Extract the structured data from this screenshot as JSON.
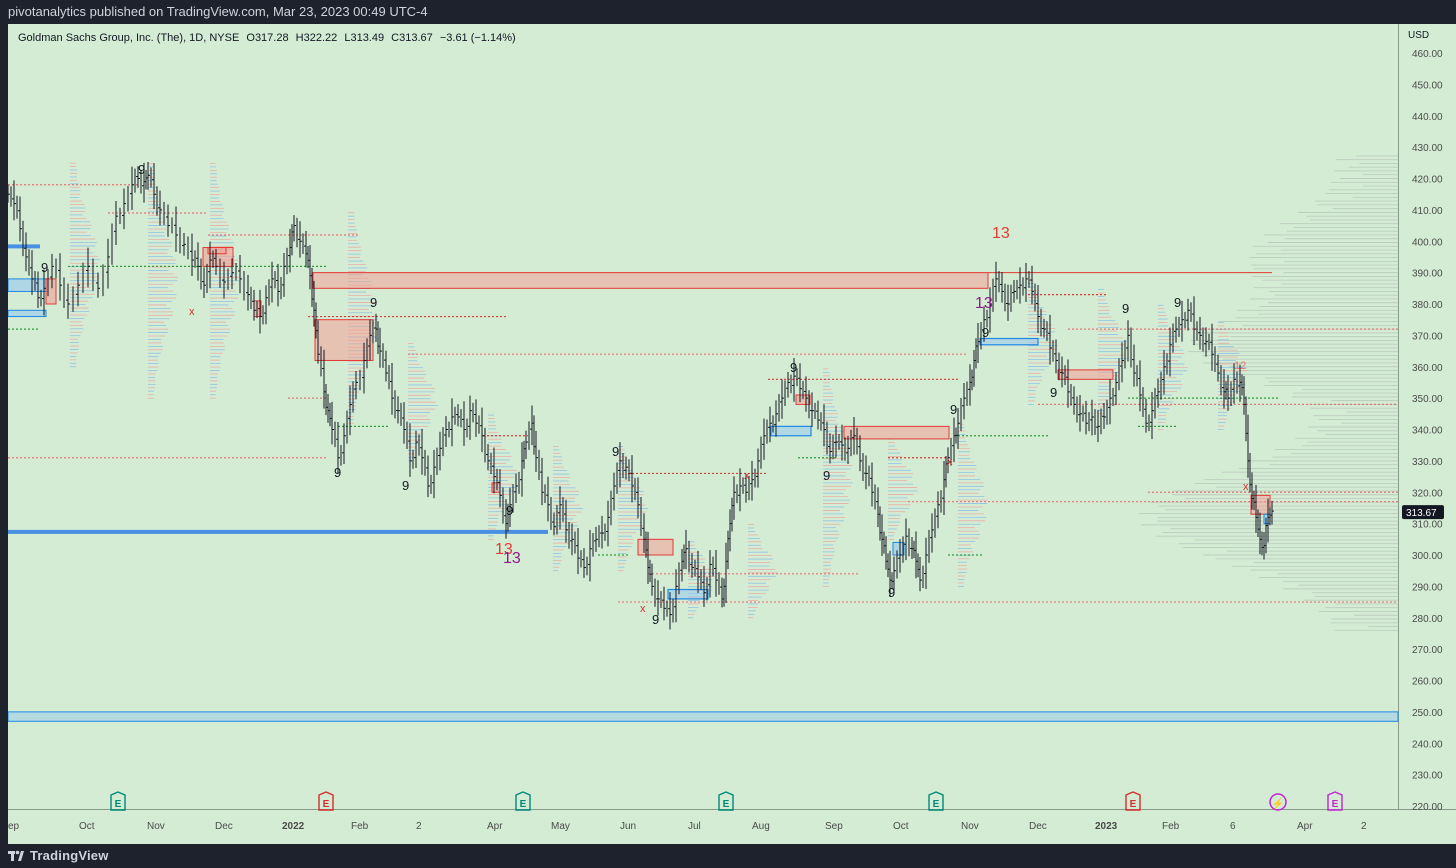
{
  "header": {
    "published_text": "pivotanalytics published on TradingView.com, Mar 23, 2023 00:49 UTC-4"
  },
  "legend": {
    "symbol": "Goldman Sachs Group, Inc. (The), 1D, NYSE",
    "open_label": "O",
    "open": "317.28",
    "high_label": "H",
    "high": "322.22",
    "low_label": "L",
    "low": "313.49",
    "close_label": "C",
    "close": "313.67",
    "change": "−3.61 (−1.14%)"
  },
  "price_axis": {
    "currency": "USD",
    "ticks": [
      "460.00",
      "450.00",
      "440.00",
      "430.00",
      "420.00",
      "410.00",
      "400.00",
      "390.00",
      "380.00",
      "370.00",
      "360.00",
      "350.00",
      "340.00",
      "330.00",
      "320.00",
      "310.00",
      "300.00",
      "290.00",
      "280.00",
      "270.00",
      "260.00",
      "250.00",
      "240.00",
      "230.00",
      "220.00"
    ],
    "last_price_badge": "313.67"
  },
  "time_axis": {
    "ticks": [
      "ep",
      "Oct",
      "Nov",
      "Dec",
      "2022",
      "Feb",
      "2",
      "Apr",
      "May",
      "Jun",
      "Jul",
      "Aug",
      "Sep",
      "Oct",
      "Nov",
      "Dec",
      "2023",
      "Feb",
      "6",
      "Apr",
      "2"
    ]
  },
  "event_markers": [
    {
      "label": "E",
      "kind": "earnings-beat"
    },
    {
      "label": "E",
      "kind": "earnings-miss"
    },
    {
      "label": "E",
      "kind": "earnings-beat"
    },
    {
      "label": "E",
      "kind": "earnings-beat"
    },
    {
      "label": "E",
      "kind": "earnings-beat"
    },
    {
      "label": "E",
      "kind": "earnings-miss"
    },
    {
      "label": "⚡",
      "kind": "split-dividend"
    },
    {
      "label": "E",
      "kind": "earnings-upcoming"
    }
  ],
  "td_labels": [
    {
      "text": "9",
      "color": "#131722"
    },
    {
      "text": "9",
      "color": "#131722"
    },
    {
      "text": "9",
      "color": "#131722"
    },
    {
      "text": "9",
      "color": "#131722"
    },
    {
      "text": "9",
      "color": "#131722"
    },
    {
      "text": "9",
      "color": "#131722"
    },
    {
      "text": "9",
      "color": "#131722"
    },
    {
      "text": "9",
      "color": "#131722"
    },
    {
      "text": "9",
      "color": "#131722"
    },
    {
      "text": "9",
      "color": "#131722"
    },
    {
      "text": "9",
      "color": "#131722"
    },
    {
      "text": "9",
      "color": "#131722"
    },
    {
      "text": "9",
      "color": "#131722"
    },
    {
      "text": "9",
      "color": "#131722"
    },
    {
      "text": "9",
      "color": "#131722"
    },
    {
      "text": "9",
      "color": "#131722"
    },
    {
      "text": "9",
      "color": "#131722"
    },
    {
      "text": "9",
      "color": "#131722"
    },
    {
      "text": "13",
      "color": "#e53935"
    },
    {
      "text": "13",
      "color": "#8e1a8e"
    },
    {
      "text": "13",
      "color": "#8e1a8e"
    },
    {
      "text": "13",
      "color": "#e53935"
    },
    {
      "text": "12",
      "color": "#e57373"
    }
  ],
  "colors": {
    "chart_bg": "#d4ecd4",
    "candle": "#131722",
    "supply_zone": "#e53935",
    "demand_zone": "#1e88e5",
    "poc_line": "#2e9d3a",
    "badge_bg": "#131722",
    "earnings_beat": "#00897b",
    "earnings_miss": "#d32f2f",
    "upcoming": "#c026d3"
  },
  "footer": {
    "brand": "TradingView"
  },
  "chart_data": {
    "type": "candlestick",
    "title": "Goldman Sachs Group, Inc. (The), 1D, NYSE",
    "xlabel": "",
    "ylabel": "USD",
    "ylim": [
      215,
      468
    ],
    "grid": false,
    "x_ticks": [
      "Oct",
      "Nov",
      "Dec",
      "2022",
      "Feb",
      "2",
      "Apr",
      "May",
      "Jun",
      "Jul",
      "Aug",
      "Sep",
      "Oct",
      "Nov",
      "Dec",
      "2023",
      "Feb",
      "6",
      "Apr",
      "2"
    ],
    "price_path": [
      [
        0,
        415
      ],
      [
        6,
        412
      ],
      [
        12,
        404
      ],
      [
        18,
        395
      ],
      [
        24,
        388
      ],
      [
        30,
        382
      ],
      [
        36,
        385
      ],
      [
        44,
        392
      ],
      [
        52,
        386
      ],
      [
        60,
        380
      ],
      [
        70,
        386
      ],
      [
        80,
        392
      ],
      [
        90,
        385
      ],
      [
        100,
        395
      ],
      [
        108,
        408
      ],
      [
        116,
        412
      ],
      [
        124,
        418
      ],
      [
        130,
        420
      ],
      [
        136,
        419
      ],
      [
        140,
        421
      ],
      [
        146,
        415
      ],
      [
        152,
        410
      ],
      [
        160,
        405
      ],
      [
        168,
        402
      ],
      [
        176,
        399
      ],
      [
        184,
        394
      ],
      [
        190,
        392
      ],
      [
        196,
        386
      ],
      [
        202,
        394
      ],
      [
        208,
        392
      ],
      [
        216,
        387
      ],
      [
        224,
        390
      ],
      [
        232,
        388
      ],
      [
        240,
        383
      ],
      [
        246,
        378
      ],
      [
        252,
        376
      ],
      [
        258,
        382
      ],
      [
        264,
        388
      ],
      [
        270,
        384
      ],
      [
        276,
        392
      ],
      [
        282,
        398
      ],
      [
        286,
        405
      ],
      [
        292,
        400
      ],
      [
        298,
        396
      ],
      [
        302,
        389
      ],
      [
        306,
        378
      ],
      [
        310,
        364
      ],
      [
        316,
        352
      ],
      [
        320,
        346
      ],
      [
        324,
        340
      ],
      [
        330,
        331
      ],
      [
        336,
        338
      ],
      [
        342,
        348
      ],
      [
        348,
        355
      ],
      [
        356,
        362
      ],
      [
        362,
        370
      ],
      [
        368,
        372
      ],
      [
        372,
        365
      ],
      [
        378,
        358
      ],
      [
        384,
        350
      ],
      [
        390,
        346
      ],
      [
        396,
        340
      ],
      [
        402,
        330
      ],
      [
        408,
        336
      ],
      [
        414,
        331
      ],
      [
        420,
        322
      ],
      [
        426,
        328
      ],
      [
        432,
        334
      ],
      [
        438,
        340
      ],
      [
        444,
        344
      ],
      [
        450,
        344
      ],
      [
        456,
        340
      ],
      [
        462,
        346
      ],
      [
        468,
        342
      ],
      [
        474,
        338
      ],
      [
        480,
        330
      ],
      [
        486,
        325
      ],
      [
        492,
        319
      ],
      [
        498,
        310
      ],
      [
        502,
        316
      ],
      [
        508,
        322
      ],
      [
        514,
        330
      ],
      [
        518,
        336
      ],
      [
        524,
        342
      ],
      [
        528,
        331
      ],
      [
        534,
        320
      ],
      [
        540,
        316
      ],
      [
        546,
        309
      ],
      [
        552,
        316
      ],
      [
        558,
        308
      ],
      [
        564,
        305
      ],
      [
        570,
        299
      ],
      [
        576,
        296
      ],
      [
        582,
        302
      ],
      [
        588,
        305
      ],
      [
        594,
        307
      ],
      [
        600,
        312
      ],
      [
        606,
        322
      ],
      [
        612,
        330
      ],
      [
        618,
        328
      ],
      [
        624,
        322
      ],
      [
        630,
        316
      ],
      [
        636,
        305
      ],
      [
        640,
        296
      ],
      [
        644,
        290
      ],
      [
        650,
        286
      ],
      [
        656,
        283
      ],
      [
        662,
        281
      ],
      [
        668,
        290
      ],
      [
        674,
        298
      ],
      [
        678,
        302
      ],
      [
        684,
        296
      ],
      [
        690,
        293
      ],
      [
        696,
        288
      ],
      [
        702,
        297
      ],
      [
        708,
        292
      ],
      [
        714,
        286
      ],
      [
        718,
        298
      ],
      [
        722,
        310
      ],
      [
        726,
        320
      ],
      [
        732,
        322
      ],
      [
        738,
        320
      ],
      [
        744,
        324
      ],
      [
        750,
        330
      ],
      [
        756,
        338
      ],
      [
        762,
        342
      ],
      [
        768,
        345
      ],
      [
        774,
        350
      ],
      [
        780,
        355
      ],
      [
        786,
        357
      ],
      [
        792,
        353
      ],
      [
        798,
        350
      ],
      [
        804,
        346
      ],
      [
        810,
        343
      ],
      [
        816,
        340
      ],
      [
        822,
        333
      ],
      [
        828,
        336
      ],
      [
        834,
        335
      ],
      [
        840,
        334
      ],
      [
        846,
        338
      ],
      [
        852,
        330
      ],
      [
        858,
        326
      ],
      [
        864,
        320
      ],
      [
        870,
        313
      ],
      [
        874,
        305
      ],
      [
        878,
        298
      ],
      [
        882,
        292
      ],
      [
        886,
        295
      ],
      [
        892,
        300
      ],
      [
        898,
        306
      ],
      [
        904,
        302
      ],
      [
        908,
        298
      ],
      [
        912,
        292
      ],
      [
        918,
        300
      ],
      [
        924,
        308
      ],
      [
        930,
        316
      ],
      [
        936,
        324
      ],
      [
        940,
        331
      ],
      [
        946,
        338
      ],
      [
        950,
        342
      ],
      [
        956,
        350
      ],
      [
        962,
        355
      ],
      [
        966,
        362
      ],
      [
        970,
        368
      ],
      [
        976,
        375
      ],
      [
        982,
        380
      ],
      [
        988,
        388
      ],
      [
        994,
        384
      ],
      [
        1000,
        380
      ],
      [
        1006,
        384
      ],
      [
        1012,
        386
      ],
      [
        1018,
        388
      ],
      [
        1024,
        384
      ],
      [
        1030,
        376
      ],
      [
        1036,
        372
      ],
      [
        1042,
        366
      ],
      [
        1048,
        362
      ],
      [
        1054,
        358
      ],
      [
        1060,
        352
      ],
      [
        1066,
        348
      ],
      [
        1072,
        345
      ],
      [
        1078,
        342
      ],
      [
        1084,
        344
      ],
      [
        1090,
        341
      ],
      [
        1096,
        344
      ],
      [
        1102,
        350
      ],
      [
        1108,
        355
      ],
      [
        1114,
        362
      ],
      [
        1120,
        370
      ],
      [
        1126,
        358
      ],
      [
        1132,
        351
      ],
      [
        1138,
        342
      ],
      [
        1144,
        346
      ],
      [
        1150,
        352
      ],
      [
        1156,
        360
      ],
      [
        1162,
        367
      ],
      [
        1168,
        372
      ],
      [
        1174,
        375
      ],
      [
        1180,
        378
      ],
      [
        1186,
        372
      ],
      [
        1192,
        370
      ],
      [
        1198,
        368
      ],
      [
        1204,
        364
      ],
      [
        1210,
        358
      ],
      [
        1216,
        352
      ],
      [
        1220,
        350
      ],
      [
        1226,
        356
      ],
      [
        1232,
        355
      ],
      [
        1236,
        348
      ],
      [
        1240,
        330
      ],
      [
        1244,
        318
      ],
      [
        1248,
        312
      ],
      [
        1252,
        305
      ],
      [
        1256,
        303
      ],
      [
        1260,
        312
      ],
      [
        1264,
        314
      ]
    ],
    "supply_zones": [
      {
        "x0": "2022-01-12",
        "x1": "2022-11-08",
        "low": 385,
        "high": 390
      },
      {
        "x0": "2022-01-12",
        "x1": "2022-02-01",
        "low": 362,
        "high": 375
      },
      {
        "x0": "2022-06-13",
        "x1": "2022-06-27",
        "low": 300,
        "high": 305
      },
      {
        "x0": "2022-09-13",
        "x1": "2022-10-24",
        "low": 337,
        "high": 341
      },
      {
        "x0": "2022-11-29",
        "x1": "2022-12-15",
        "low": 356,
        "high": 359
      },
      {
        "x0": "2023-03-13",
        "x1": "2023-03-20",
        "low": 313,
        "high": 319
      }
    ],
    "demand_zones": [
      {
        "x0": "2022-11-08",
        "x1": "2022-11-29",
        "low": 367,
        "high": 369
      },
      {
        "x0": "2022-08-01",
        "x1": "2022-08-15",
        "low": 338,
        "high": 341
      },
      {
        "x0": "2022-07-01",
        "x1": "2022-07-15",
        "low": 286,
        "high": 289
      }
    ],
    "last_price": 313.67
  }
}
